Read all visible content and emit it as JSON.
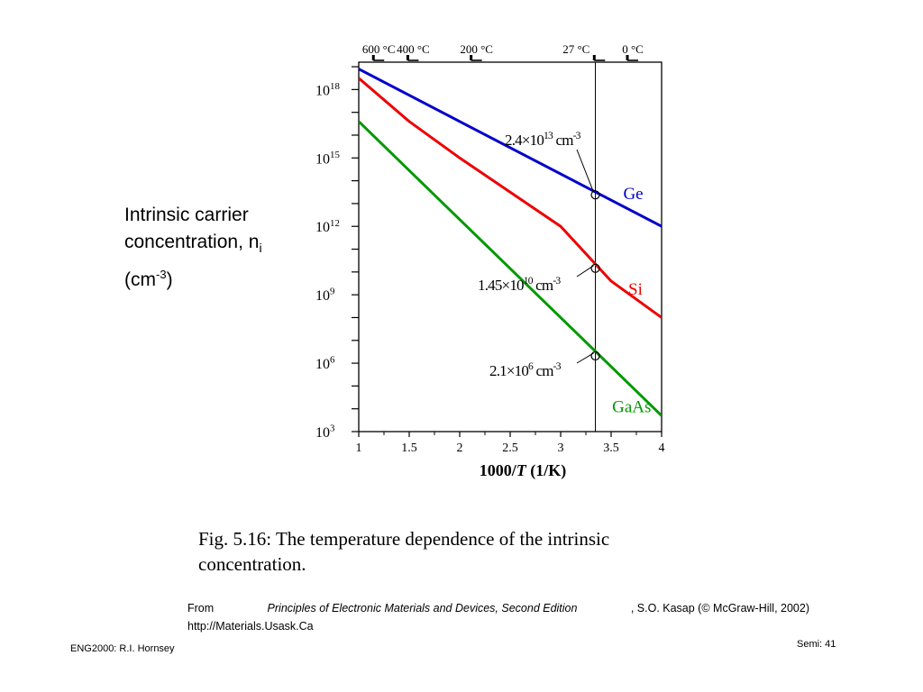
{
  "chart_data": {
    "type": "line",
    "y_scale": "log",
    "xlabel_main": "1000/",
    "xlabel_T": "T",
    "xlabel_unit": " (1/K)",
    "ylabel": {
      "line1": "Intrinsic carrier",
      "line2": "concentration, n",
      "line2_sub": "i",
      "line3_pre": "(cm",
      "line3_sup": "-3",
      "line3_post": ")"
    },
    "xlim": [
      1,
      4
    ],
    "ylim_exponent": [
      3,
      19.2
    ],
    "x_ticks": [
      "1",
      "1.5",
      "2",
      "2.5",
      "3",
      "3.5",
      "4"
    ],
    "y_ticks": [
      {
        "base": "10",
        "exp": "18",
        "value_exp": 18
      },
      {
        "base": "10",
        "exp": "15",
        "value_exp": 15
      },
      {
        "base": "10",
        "exp": "12",
        "value_exp": 12
      },
      {
        "base": "10",
        "exp": "9",
        "value_exp": 9
      },
      {
        "base": "10",
        "exp": "6",
        "value_exp": 6
      },
      {
        "base": "10",
        "exp": "3",
        "value_exp": 3
      }
    ],
    "series": [
      {
        "name": "Ge",
        "color": "#0000cc",
        "x": [
          1.0,
          4.0
        ],
        "log10_y": [
          18.9,
          12.0
        ]
      },
      {
        "name": "Si",
        "color": "#ee0000",
        "x": [
          1.0,
          1.5,
          2.0,
          2.5,
          3.0,
          3.5,
          4.0
        ],
        "log10_y": [
          18.5,
          16.6,
          15.0,
          13.5,
          12.0,
          9.6,
          8.0
        ]
      },
      {
        "name": "GaAs",
        "color": "#009900",
        "x": [
          1.0,
          4.0
        ],
        "log10_y": [
          16.6,
          3.7
        ]
      }
    ],
    "reference_line_x": 3.344,
    "top_temperatures": [
      {
        "label": "600 °C",
        "x": 1.145
      },
      {
        "label": "400 °C",
        "x": 1.486
      },
      {
        "label": "200 °C",
        "x": 2.113
      },
      {
        "label": "27 °C",
        "x": 3.333
      },
      {
        "label": "0 °C",
        "x": 3.661
      }
    ],
    "annotations": [
      {
        "series": "Ge",
        "x": 3.344,
        "log10_y": 13.38,
        "text": "2.4×10",
        "sup": "13",
        "unit": " cm",
        "unit_sup": "-3"
      },
      {
        "series": "Si",
        "x": 3.344,
        "log10_y": 10.16,
        "text": "1.45×10",
        "sup": "10",
        "unit": " cm",
        "unit_sup": "-3"
      },
      {
        "series": "GaAs",
        "x": 3.344,
        "log10_y": 6.32,
        "text": "2.1×10",
        "sup": "6",
        "unit": " cm",
        "unit_sup": "-3"
      }
    ]
  },
  "caption": {
    "line1": "Fig. 5.16: The temperature dependence of the intrinsic",
    "line2": "concentration."
  },
  "source": {
    "from": "From",
    "book": "Principles of Electronic Materials and Devices, Second Edition",
    "author": ", S.O. Kasap (© McGraw-Hill, 2002)",
    "url": "http://Materials.Usask.Ca"
  },
  "footer": {
    "left": "ENG2000: R.I. Hornsey",
    "right": "Semi: 41"
  }
}
